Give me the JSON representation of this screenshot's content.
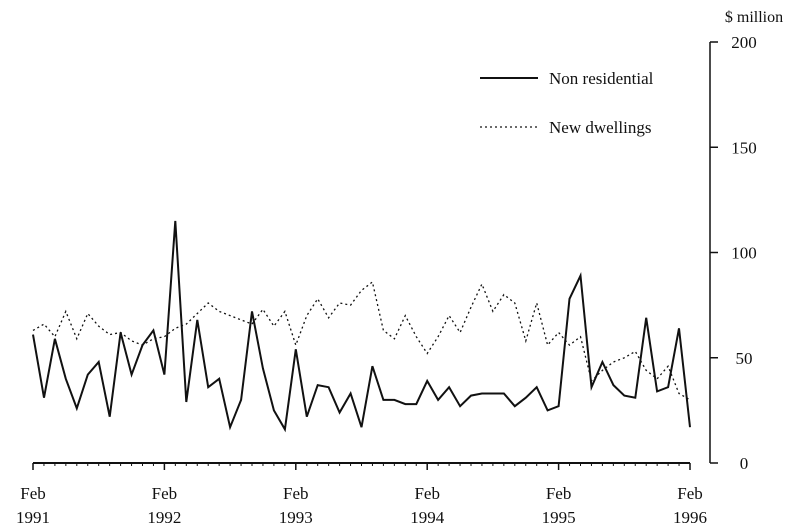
{
  "chart_data": {
    "type": "line",
    "ylabel": "$ million",
    "ylim": [
      0,
      200
    ],
    "y_ticks": [
      "0",
      "50",
      "100",
      "150",
      "200"
    ],
    "x_ticks": [
      {
        "month": "Feb",
        "year": "1991"
      },
      {
        "month": "Feb",
        "year": "1992"
      },
      {
        "month": "Feb",
        "year": "1993"
      },
      {
        "month": "Feb",
        "year": "1994"
      },
      {
        "month": "Feb",
        "year": "1995"
      },
      {
        "month": "Feb",
        "year": "1996"
      }
    ],
    "x_start": "Feb 1991",
    "x_end": "Feb 1996",
    "legend_position": "top-right",
    "series": [
      {
        "name": "Non residential",
        "style": "solid",
        "values": [
          61,
          31,
          59,
          40,
          26,
          42,
          48,
          22,
          62,
          42,
          56,
          63,
          42,
          115,
          29,
          68,
          36,
          40,
          17,
          30,
          72,
          45,
          25,
          16,
          54,
          22,
          37,
          36,
          24,
          33,
          17,
          46,
          30,
          30,
          28,
          28,
          39,
          30,
          36,
          27,
          32,
          33,
          33,
          33,
          27,
          31,
          36,
          25,
          27,
          78,
          89,
          36,
          48,
          37,
          32,
          31,
          69,
          34,
          36,
          64,
          17
        ]
      },
      {
        "name": "New dwellings",
        "style": "dotted",
        "values": [
          63,
          66,
          60,
          72,
          59,
          71,
          65,
          61,
          62,
          58,
          56,
          59,
          60,
          64,
          66,
          71,
          76,
          72,
          70,
          68,
          66,
          73,
          65,
          72,
          56,
          70,
          78,
          69,
          76,
          75,
          82,
          86,
          63,
          59,
          70,
          60,
          52,
          60,
          70,
          62,
          74,
          85,
          72,
          80,
          76,
          58,
          76,
          56,
          62,
          56,
          60,
          39,
          44,
          48,
          50,
          53,
          44,
          40,
          46,
          33,
          30
        ]
      }
    ]
  }
}
